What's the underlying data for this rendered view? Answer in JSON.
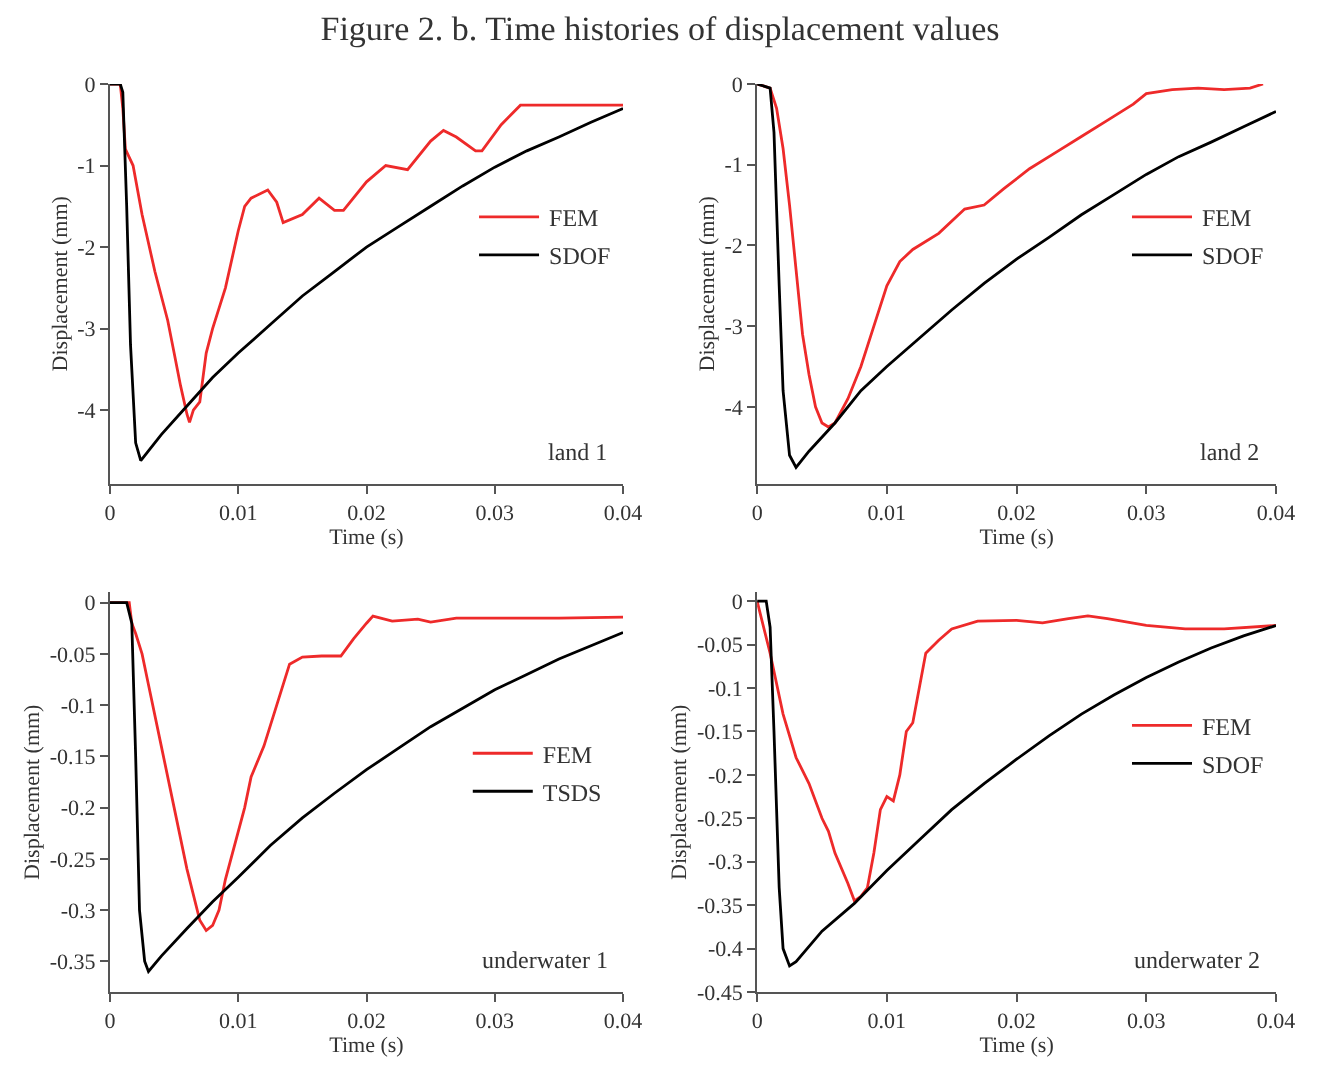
{
  "chart_data": [
    {
      "type": "line",
      "title": "Figure 2. b. Time histories of displacement values",
      "xlabel": "Time (s)",
      "ylabel": "Displacement (mm)",
      "xlim": [
        0,
        0.04
      ],
      "xticks": [
        0,
        0.01,
        0.02,
        0.03,
        0.04
      ],
      "ylim": [
        -4.9,
        0
      ],
      "yticks": [
        0,
        -1,
        -2,
        -3,
        -4
      ],
      "legend": "top right",
      "annotations": [
        "land 1"
      ],
      "series": [
        {
          "name": "FEM",
          "color": "#ee2a2a",
          "x": [
            0,
            0.0008,
            0.001,
            0.0012,
            0.0018,
            0.0025,
            0.0035,
            0.0045,
            0.005,
            0.0055,
            0.006,
            0.0062,
            0.0065,
            0.007,
            0.0075,
            0.008,
            0.009,
            0.01,
            0.0105,
            0.011,
            0.0123,
            0.013,
            0.0135,
            0.015,
            0.0163,
            0.0175,
            0.0182,
            0.02,
            0.0215,
            0.0232,
            0.025,
            0.026,
            0.027,
            0.0285,
            0.029,
            0.0305,
            0.032,
            0.035,
            0.04
          ],
          "values": [
            0,
            0,
            -0.3,
            -0.8,
            -1.0,
            -1.6,
            -2.3,
            -2.9,
            -3.3,
            -3.7,
            -4.05,
            -4.15,
            -4.0,
            -3.9,
            -3.3,
            -3.0,
            -2.5,
            -1.8,
            -1.5,
            -1.4,
            -1.3,
            -1.45,
            -1.7,
            -1.6,
            -1.4,
            -1.55,
            -1.55,
            -1.2,
            -1.0,
            -1.05,
            -0.7,
            -0.57,
            -0.65,
            -0.82,
            -0.82,
            -0.5,
            -0.26,
            -0.26,
            -0.26
          ]
        },
        {
          "name": "SDOF",
          "color": "#000000",
          "x": [
            0,
            0.0008,
            0.001,
            0.0013,
            0.0016,
            0.002,
            0.0024,
            0.004,
            0.006,
            0.008,
            0.01,
            0.0125,
            0.015,
            0.0175,
            0.02,
            0.0225,
            0.025,
            0.0275,
            0.03,
            0.0325,
            0.035,
            0.0375,
            0.04
          ],
          "values": [
            0,
            0,
            -0.1,
            -1.5,
            -3.2,
            -4.4,
            -4.62,
            -4.3,
            -3.95,
            -3.6,
            -3.3,
            -2.95,
            -2.6,
            -2.3,
            -2.0,
            -1.75,
            -1.5,
            -1.25,
            -1.02,
            -0.82,
            -0.65,
            -0.47,
            -0.3
          ]
        }
      ]
    },
    {
      "type": "line",
      "xlabel": "Time (s)",
      "ylabel": "Displacement (mm)",
      "xlim": [
        0,
        0.04
      ],
      "xticks": [
        0,
        0.01,
        0.02,
        0.03,
        0.04
      ],
      "ylim": [
        -4.95,
        0
      ],
      "yticks": [
        0,
        -1,
        -2,
        -3,
        -4
      ],
      "legend": "top right",
      "annotations": [
        "land 2"
      ],
      "series": [
        {
          "name": "FEM",
          "color": "#ee2a2a",
          "x": [
            0,
            0.001,
            0.0015,
            0.002,
            0.0025,
            0.003,
            0.0035,
            0.004,
            0.0045,
            0.005,
            0.0055,
            0.006,
            0.007,
            0.008,
            0.009,
            0.01,
            0.011,
            0.012,
            0.014,
            0.016,
            0.0175,
            0.019,
            0.021,
            0.023,
            0.025,
            0.027,
            0.029,
            0.03,
            0.032,
            0.034,
            0.036,
            0.038,
            0.039
          ],
          "values": [
            0,
            -0.05,
            -0.3,
            -0.8,
            -1.5,
            -2.3,
            -3.1,
            -3.6,
            -4.0,
            -4.2,
            -4.25,
            -4.2,
            -3.9,
            -3.5,
            -3.0,
            -2.5,
            -2.2,
            -2.05,
            -1.85,
            -1.55,
            -1.5,
            -1.3,
            -1.05,
            -0.85,
            -0.65,
            -0.45,
            -0.25,
            -0.12,
            -0.07,
            -0.05,
            -0.07,
            -0.05,
            0
          ]
        },
        {
          "name": "SDOF",
          "color": "#000000",
          "x": [
            0,
            0.001,
            0.0013,
            0.0017,
            0.002,
            0.0025,
            0.003,
            0.004,
            0.006,
            0.008,
            0.01,
            0.0125,
            0.015,
            0.0175,
            0.02,
            0.0225,
            0.025,
            0.0275,
            0.03,
            0.0325,
            0.035,
            0.0375,
            0.04
          ],
          "values": [
            0,
            -0.05,
            -0.6,
            -2.5,
            -3.8,
            -4.6,
            -4.75,
            -4.55,
            -4.2,
            -3.8,
            -3.5,
            -3.15,
            -2.8,
            -2.47,
            -2.17,
            -1.9,
            -1.62,
            -1.37,
            -1.12,
            -0.9,
            -0.72,
            -0.53,
            -0.34
          ]
        }
      ]
    },
    {
      "type": "line",
      "xlabel": "Time (s)",
      "ylabel": "Displacement (mm)",
      "xlim": [
        0,
        0.04
      ],
      "xticks": [
        0,
        0.01,
        0.02,
        0.03,
        0.04
      ],
      "ylim": [
        -0.38,
        0.01
      ],
      "yticks": [
        0,
        -0.05,
        -0.1,
        -0.15,
        -0.2,
        -0.25,
        -0.3,
        -0.35
      ],
      "legend": "right",
      "annotations": [
        "underwater 1"
      ],
      "series": [
        {
          "name": "FEM",
          "color": "#ee2a2a",
          "x": [
            0,
            0.0015,
            0.0017,
            0.002,
            0.0025,
            0.003,
            0.004,
            0.005,
            0.006,
            0.007,
            0.0075,
            0.008,
            0.0085,
            0.009,
            0.0105,
            0.011,
            0.012,
            0.013,
            0.014,
            0.015,
            0.0165,
            0.018,
            0.019,
            0.02,
            0.0205,
            0.022,
            0.024,
            0.025,
            0.027,
            0.03,
            0.035,
            0.04
          ],
          "values": [
            0,
            0,
            -0.02,
            -0.03,
            -0.05,
            -0.08,
            -0.14,
            -0.2,
            -0.26,
            -0.31,
            -0.32,
            -0.315,
            -0.3,
            -0.27,
            -0.2,
            -0.17,
            -0.14,
            -0.1,
            -0.06,
            -0.053,
            -0.052,
            -0.052,
            -0.035,
            -0.02,
            -0.013,
            -0.018,
            -0.016,
            -0.019,
            -0.015,
            -0.015,
            -0.015,
            -0.014
          ]
        },
        {
          "name": "TSDS",
          "color": "#000000",
          "x": [
            0,
            0.0013,
            0.0017,
            0.002,
            0.0023,
            0.0027,
            0.003,
            0.004,
            0.006,
            0.008,
            0.01,
            0.0125,
            0.015,
            0.0175,
            0.02,
            0.0225,
            0.025,
            0.0275,
            0.03,
            0.0325,
            0.035,
            0.0375,
            0.04
          ],
          "values": [
            0,
            0,
            -0.02,
            -0.15,
            -0.3,
            -0.35,
            -0.36,
            -0.345,
            -0.318,
            -0.292,
            -0.268,
            -0.237,
            -0.21,
            -0.186,
            -0.163,
            -0.142,
            -0.121,
            -0.103,
            -0.085,
            -0.07,
            -0.055,
            -0.042,
            -0.029
          ]
        }
      ]
    },
    {
      "type": "line",
      "xlabel": "Time (s)",
      "ylabel": "Displacement (mm)",
      "xlim": [
        0,
        0.04
      ],
      "xticks": [
        0,
        0.01,
        0.02,
        0.03,
        0.04
      ],
      "ylim": [
        -0.45,
        0.01
      ],
      "yticks": [
        0,
        -0.05,
        -0.1,
        -0.15,
        -0.2,
        -0.25,
        -0.3,
        -0.35,
        -0.4,
        -0.45
      ],
      "legend": "top right",
      "annotations": [
        "underwater 2"
      ],
      "series": [
        {
          "name": "FEM",
          "color": "#ee2a2a",
          "x": [
            0,
            0.001,
            0.002,
            0.003,
            0.004,
            0.005,
            0.0055,
            0.006,
            0.007,
            0.0075,
            0.008,
            0.0085,
            0.009,
            0.0095,
            0.01,
            0.0105,
            0.011,
            0.0115,
            0.012,
            0.013,
            0.014,
            0.015,
            0.017,
            0.02,
            0.022,
            0.024,
            0.0255,
            0.027,
            0.03,
            0.033,
            0.036,
            0.04
          ],
          "values": [
            0,
            -0.06,
            -0.13,
            -0.18,
            -0.21,
            -0.25,
            -0.265,
            -0.29,
            -0.325,
            -0.345,
            -0.34,
            -0.33,
            -0.29,
            -0.24,
            -0.225,
            -0.23,
            -0.2,
            -0.15,
            -0.14,
            -0.06,
            -0.045,
            -0.032,
            -0.023,
            -0.022,
            -0.025,
            -0.02,
            -0.017,
            -0.02,
            -0.028,
            -0.032,
            -0.032,
            -0.028
          ]
        },
        {
          "name": "SDOF",
          "color": "#000000",
          "x": [
            0,
            0.0007,
            0.001,
            0.0013,
            0.0017,
            0.002,
            0.0025,
            0.003,
            0.005,
            0.0075,
            0.01,
            0.0125,
            0.015,
            0.0175,
            0.02,
            0.0225,
            0.025,
            0.0275,
            0.03,
            0.0325,
            0.035,
            0.0375,
            0.04
          ],
          "values": [
            0,
            0,
            -0.03,
            -0.15,
            -0.33,
            -0.4,
            -0.42,
            -0.415,
            -0.38,
            -0.348,
            -0.31,
            -0.275,
            -0.24,
            -0.21,
            -0.182,
            -0.155,
            -0.13,
            -0.108,
            -0.088,
            -0.07,
            -0.054,
            -0.04,
            -0.028
          ]
        }
      ]
    }
  ]
}
